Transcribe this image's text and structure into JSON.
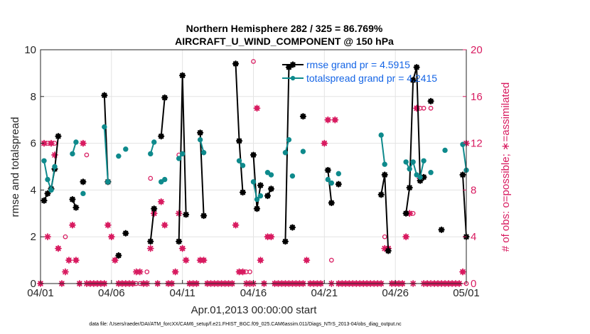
{
  "chart_data": {
    "type": "line",
    "title": "Northern Hemisphere 282 / 325 = 86.769%",
    "subtitle": "AIRCRAFT_U_WIND_COMPONENT @ 150 hPa",
    "xlabel": "Apr.01,2013 00:00:00 start",
    "ylabel_left": "rmse and totalspread",
    "ylabel_right": "# of obs: o=possible; ∗=assimilated",
    "footer": "data file: /Users/raeder/DAI/ATM_forcXX/CAM6_setup/f.e21.FHIST_BGC.f09_025.CAM6assim.011/Diags_NTrS_2013-04/obs_diag_output.nc",
    "xlim": [
      0,
      30
    ],
    "ylim_left": [
      0,
      10
    ],
    "ylim_right": [
      0,
      20
    ],
    "x_ticks": [
      0,
      5,
      10,
      15,
      20,
      25,
      30
    ],
    "x_ticklabels": [
      "04/01",
      "04/06",
      "04/11",
      "04/16",
      "04/21",
      "04/26",
      "05/01"
    ],
    "y_left_ticks": [
      0,
      2,
      4,
      6,
      8,
      10
    ],
    "y_right_ticks": [
      0,
      4,
      8,
      12,
      16,
      20
    ],
    "legend": [
      {
        "label": "rmse grand pr = 4.5915",
        "color": "#000000"
      },
      {
        "label": "totalspread grand pr = 4.2415",
        "color": "#0e8a8c"
      }
    ],
    "colors": {
      "rmse": "#000000",
      "spread": "#0e8a8c",
      "obs": "#d81b60",
      "legend_text": "#1565e6"
    },
    "series": [
      {
        "name": "rmse",
        "segments": [
          [
            [
              0.25,
              3.55
            ],
            [
              0.5,
              3.85
            ],
            [
              0.75,
              4.05
            ],
            [
              1.0,
              4.9
            ],
            [
              1.25,
              6.3
            ]
          ],
          [
            [
              2.25,
              3.6
            ],
            [
              2.5,
              3.25
            ]
          ],
          [
            [
              3.0,
              4.35
            ]
          ],
          [
            [
              4.5,
              8.05
            ],
            [
              4.75,
              4.35
            ]
          ],
          [
            [
              5.5,
              1.2
            ]
          ],
          [
            [
              6.0,
              2.15
            ]
          ],
          [
            [
              7.75,
              1.8
            ],
            [
              8.0,
              3.2
            ]
          ],
          [
            [
              8.5,
              6.3
            ],
            [
              8.75,
              7.95
            ]
          ],
          [
            [
              9.75,
              1.8
            ],
            [
              10.0,
              8.9
            ],
            [
              10.25,
              2.95
            ]
          ],
          [
            [
              11.25,
              6.45
            ],
            [
              11.5,
              2.9
            ]
          ],
          [
            [
              13.75,
              9.4
            ],
            [
              14.0,
              6.1
            ],
            [
              14.25,
              3.9
            ]
          ],
          [
            [
              15.0,
              5.5
            ],
            [
              15.25,
              3.2
            ],
            [
              15.5,
              4.2
            ]
          ],
          [
            [
              16.0,
              3.75
            ],
            [
              16.25,
              4.05
            ]
          ],
          [
            [
              17.25,
              1.8
            ],
            [
              17.5,
              9.25
            ]
          ],
          [
            [
              17.75,
              2.4
            ]
          ],
          [
            [
              18.5,
              7.15
            ]
          ],
          [
            [
              20.25,
              4.85
            ],
            [
              20.5,
              3.45
            ]
          ],
          [
            [
              21.0,
              4.25
            ]
          ],
          [
            [
              24.0,
              3.8
            ],
            [
              24.25,
              4.65
            ],
            [
              24.5,
              1.4
            ]
          ],
          [
            [
              25.75,
              3.0
            ],
            [
              26.0,
              4.1
            ],
            [
              26.25,
              8.7
            ],
            [
              26.5,
              9.25
            ],
            [
              26.75,
              4.4
            ],
            [
              27.0,
              4.55
            ]
          ],
          [
            [
              27.5,
              7.8
            ]
          ],
          [
            [
              28.25,
              2.3
            ]
          ],
          [
            [
              29.75,
              4.65
            ],
            [
              30.0,
              2.0
            ]
          ]
        ]
      },
      {
        "name": "totalspread",
        "segments": [
          [
            [
              0.25,
              5.25
            ],
            [
              0.5,
              4.45
            ],
            [
              0.75,
              4.0
            ],
            [
              1.0,
              5.0
            ]
          ],
          [
            [
              2.25,
              5.55
            ],
            [
              2.5,
              6.05
            ]
          ],
          [
            [
              3.0,
              3.85
            ]
          ],
          [
            [
              4.5,
              6.7
            ],
            [
              4.75,
              4.35
            ]
          ],
          [
            [
              5.5,
              5.45
            ]
          ],
          [
            [
              6.0,
              5.75
            ]
          ],
          [
            [
              7.75,
              5.55
            ],
            [
              8.0,
              6.05
            ]
          ],
          [
            [
              8.5,
              4.35
            ],
            [
              8.75,
              4.45
            ]
          ],
          [
            [
              9.75,
              5.35
            ],
            [
              10.0,
              5.55
            ]
          ],
          [
            [
              11.25,
              6.15
            ],
            [
              11.5,
              5.6
            ]
          ],
          [
            [
              14.0,
              5.25
            ],
            [
              14.25,
              5.05
            ]
          ],
          [
            [
              15.0,
              4.35
            ],
            [
              15.25,
              3.6
            ],
            [
              15.5,
              3.75
            ]
          ],
          [
            [
              16.0,
              4.75
            ],
            [
              16.25,
              4.65
            ]
          ],
          [
            [
              17.25,
              5.6
            ],
            [
              17.5,
              6.15
            ]
          ],
          [
            [
              17.75,
              4.6
            ]
          ],
          [
            [
              18.5,
              5.65
            ]
          ],
          [
            [
              20.25,
              4.45
            ],
            [
              20.5,
              4.3
            ]
          ],
          [
            [
              21.0,
              4.7
            ]
          ],
          [
            [
              24.0,
              6.35
            ],
            [
              24.25,
              5.1
            ]
          ],
          [
            [
              25.75,
              5.2
            ],
            [
              26.0,
              4.9
            ],
            [
              26.25,
              5.2
            ],
            [
              26.5,
              4.65
            ],
            [
              26.75,
              4.55
            ],
            [
              27.0,
              5.25
            ]
          ],
          [
            [
              27.5,
              4.75
            ]
          ],
          [
            [
              28.5,
              5.7
            ]
          ],
          [
            [
              29.75,
              5.95
            ],
            [
              30.0,
              4.85
            ]
          ]
        ]
      }
    ],
    "obs_possible": [
      [
        0.0,
        0
      ],
      [
        0.25,
        12
      ],
      [
        0.5,
        12
      ],
      [
        0.75,
        12
      ],
      [
        1.0,
        12
      ],
      [
        1.25,
        3
      ],
      [
        1.5,
        0
      ],
      [
        1.75,
        4
      ],
      [
        2.0,
        2
      ],
      [
        2.25,
        5
      ],
      [
        2.5,
        2
      ],
      [
        2.75,
        0
      ],
      [
        3.0,
        12
      ],
      [
        3.25,
        11
      ],
      [
        3.5,
        0
      ],
      [
        3.75,
        0
      ],
      [
        4.0,
        0
      ],
      [
        4.25,
        0
      ],
      [
        4.5,
        0
      ],
      [
        4.75,
        5
      ],
      [
        5.0,
        4
      ],
      [
        5.25,
        2
      ],
      [
        5.5,
        0
      ],
      [
        5.75,
        0
      ],
      [
        6.0,
        0
      ],
      [
        6.25,
        0
      ],
      [
        6.5,
        0
      ],
      [
        6.75,
        0
      ],
      [
        7.0,
        0
      ],
      [
        7.25,
        0
      ],
      [
        7.5,
        1
      ],
      [
        7.75,
        9
      ],
      [
        8.0,
        6
      ],
      [
        8.25,
        0
      ],
      [
        8.5,
        7
      ],
      [
        8.75,
        5
      ],
      [
        9.0,
        0
      ],
      [
        9.25,
        0
      ],
      [
        9.5,
        1
      ],
      [
        9.75,
        11
      ],
      [
        10.0,
        3
      ],
      [
        10.25,
        2
      ],
      [
        10.5,
        0
      ],
      [
        10.75,
        0
      ],
      [
        11.0,
        0
      ],
      [
        11.25,
        2
      ],
      [
        11.5,
        2
      ],
      [
        11.75,
        0
      ],
      [
        12.0,
        0
      ],
      [
        12.25,
        0
      ],
      [
        12.5,
        0
      ],
      [
        12.75,
        0
      ],
      [
        13.0,
        0
      ],
      [
        13.25,
        0
      ],
      [
        13.5,
        0
      ],
      [
        13.75,
        5
      ],
      [
        14.0,
        1
      ],
      [
        14.25,
        1
      ],
      [
        14.5,
        1
      ],
      [
        14.75,
        1
      ],
      [
        15.0,
        19
      ],
      [
        15.25,
        15
      ],
      [
        15.5,
        2
      ],
      [
        15.75,
        0
      ],
      [
        16.0,
        4
      ],
      [
        16.25,
        4
      ],
      [
        16.5,
        0
      ],
      [
        16.75,
        0
      ],
      [
        17.0,
        0
      ],
      [
        17.25,
        0
      ],
      [
        17.5,
        0
      ],
      [
        17.75,
        0
      ],
      [
        18.0,
        0
      ],
      [
        18.25,
        0
      ],
      [
        18.5,
        0
      ],
      [
        18.75,
        2
      ],
      [
        19.0,
        0
      ],
      [
        19.25,
        0
      ],
      [
        19.5,
        0
      ],
      [
        19.75,
        0
      ],
      [
        20.0,
        12
      ],
      [
        20.25,
        14
      ],
      [
        20.5,
        2
      ],
      [
        20.75,
        14
      ],
      [
        21.0,
        0
      ],
      [
        21.25,
        0
      ],
      [
        21.5,
        0
      ],
      [
        21.75,
        0
      ],
      [
        22.0,
        0
      ],
      [
        22.25,
        0
      ],
      [
        22.5,
        0
      ],
      [
        22.75,
        0
      ],
      [
        23.0,
        0
      ],
      [
        23.25,
        0
      ],
      [
        23.5,
        0
      ],
      [
        23.75,
        0
      ],
      [
        24.0,
        0
      ],
      [
        24.25,
        4
      ],
      [
        24.5,
        3
      ],
      [
        24.75,
        0
      ],
      [
        25.0,
        0
      ],
      [
        25.25,
        0
      ],
      [
        25.5,
        0
      ],
      [
        25.75,
        4
      ],
      [
        26.0,
        6
      ],
      [
        26.25,
        6
      ],
      [
        26.5,
        15
      ],
      [
        26.75,
        15
      ],
      [
        27.0,
        15
      ],
      [
        27.25,
        0
      ],
      [
        27.5,
        15
      ],
      [
        27.75,
        0
      ],
      [
        28.0,
        0
      ],
      [
        28.25,
        0
      ],
      [
        28.5,
        0
      ],
      [
        28.75,
        0
      ],
      [
        29.0,
        0
      ],
      [
        29.25,
        0
      ],
      [
        29.5,
        0
      ],
      [
        29.75,
        1
      ],
      [
        30.0,
        0
      ]
    ],
    "obs_assimilated": [
      [
        0.0,
        0
      ],
      [
        0.25,
        12
      ],
      [
        0.5,
        4
      ],
      [
        0.75,
        12
      ],
      [
        1.0,
        11
      ],
      [
        1.25,
        3
      ],
      [
        1.5,
        0
      ],
      [
        1.75,
        1
      ],
      [
        2.0,
        2
      ],
      [
        2.25,
        5
      ],
      [
        2.5,
        2
      ],
      [
        2.75,
        0
      ],
      [
        3.0,
        12
      ],
      [
        3.25,
        0
      ],
      [
        3.5,
        0
      ],
      [
        3.75,
        0
      ],
      [
        4.0,
        0
      ],
      [
        4.25,
        0
      ],
      [
        4.5,
        0
      ],
      [
        4.75,
        5
      ],
      [
        5.0,
        4
      ],
      [
        5.25,
        2
      ],
      [
        5.5,
        0
      ],
      [
        5.75,
        0
      ],
      [
        6.0,
        0
      ],
      [
        6.25,
        0
      ],
      [
        6.5,
        0
      ],
      [
        6.75,
        1
      ],
      [
        7.0,
        1
      ],
      [
        7.25,
        0
      ],
      [
        7.5,
        0
      ],
      [
        7.75,
        3
      ],
      [
        8.0,
        6
      ],
      [
        8.25,
        0
      ],
      [
        8.5,
        7
      ],
      [
        8.75,
        5
      ],
      [
        9.0,
        0
      ],
      [
        9.25,
        0
      ],
      [
        9.5,
        1
      ],
      [
        9.75,
        6
      ],
      [
        10.0,
        3
      ],
      [
        10.25,
        2
      ],
      [
        10.5,
        0
      ],
      [
        10.75,
        0
      ],
      [
        11.0,
        0
      ],
      [
        11.25,
        2
      ],
      [
        11.5,
        2
      ],
      [
        11.75,
        0
      ],
      [
        12.0,
        0
      ],
      [
        12.25,
        0
      ],
      [
        12.5,
        0
      ],
      [
        12.75,
        0
      ],
      [
        13.0,
        0
      ],
      [
        13.25,
        0
      ],
      [
        13.5,
        0
      ],
      [
        13.75,
        5
      ],
      [
        14.0,
        1
      ],
      [
        14.25,
        1
      ],
      [
        14.5,
        0
      ],
      [
        14.75,
        0
      ],
      [
        15.0,
        0
      ],
      [
        15.25,
        15
      ],
      [
        15.5,
        2
      ],
      [
        15.75,
        0
      ],
      [
        16.0,
        4
      ],
      [
        16.25,
        4
      ],
      [
        16.5,
        0
      ],
      [
        16.75,
        0
      ],
      [
        17.0,
        0
      ],
      [
        17.25,
        0
      ],
      [
        17.5,
        0
      ],
      [
        17.75,
        0
      ],
      [
        18.0,
        0
      ],
      [
        18.25,
        0
      ],
      [
        18.5,
        0
      ],
      [
        18.75,
        2
      ],
      [
        19.0,
        0
      ],
      [
        19.25,
        0
      ],
      [
        19.5,
        0
      ],
      [
        19.75,
        0
      ],
      [
        20.0,
        12
      ],
      [
        20.25,
        14
      ],
      [
        20.5,
        0
      ],
      [
        20.75,
        14
      ],
      [
        21.0,
        0
      ],
      [
        21.25,
        0
      ],
      [
        21.5,
        0
      ],
      [
        21.75,
        0
      ],
      [
        22.0,
        0
      ],
      [
        22.25,
        0
      ],
      [
        22.5,
        0
      ],
      [
        22.75,
        0
      ],
      [
        23.0,
        0
      ],
      [
        23.25,
        0
      ],
      [
        23.5,
        0
      ],
      [
        23.75,
        0
      ],
      [
        24.0,
        0
      ],
      [
        24.25,
        3
      ],
      [
        24.5,
        3
      ],
      [
        24.75,
        0
      ],
      [
        25.0,
        0
      ],
      [
        25.25,
        0
      ],
      [
        25.5,
        0
      ],
      [
        25.75,
        4
      ],
      [
        26.0,
        6
      ],
      [
        26.25,
        0
      ],
      [
        26.5,
        15
      ],
      [
        26.75,
        9
      ],
      [
        27.0,
        0
      ],
      [
        27.25,
        0
      ],
      [
        27.5,
        0
      ],
      [
        27.75,
        0
      ],
      [
        28.0,
        0
      ],
      [
        28.25,
        0
      ],
      [
        28.5,
        0
      ],
      [
        28.75,
        0
      ],
      [
        29.0,
        0
      ],
      [
        29.25,
        0
      ],
      [
        29.5,
        0
      ],
      [
        29.75,
        1
      ],
      [
        30.0,
        12
      ]
    ]
  }
}
